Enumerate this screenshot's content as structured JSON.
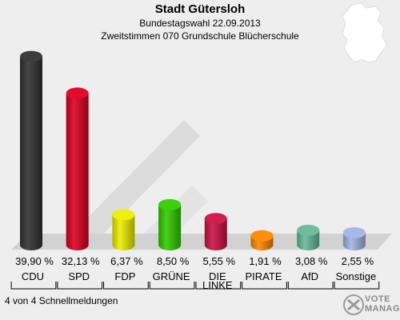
{
  "header": {
    "title": "Stadt Gütersloh",
    "subtitle": "Bundestagswahl 22.09.2013",
    "subtitle2": "Zweitstimmen 070 Grundschule Blücherschule"
  },
  "footer": {
    "text": "4 von 4 Schnellmeldungen"
  },
  "logo": {
    "text_top": "VOTE",
    "text_bottom": "MANAGER"
  },
  "chart_data": {
    "type": "bar",
    "title": "Stadt Gütersloh",
    "subtitle": "Bundestagswahl 22.09.2013 · Zweitstimmen 070 Grundschule Blücherschule",
    "categories": [
      "CDU",
      "SPD",
      "FDP",
      "GRÜNE",
      "DIE LINKE",
      "PIRATE",
      "AfD",
      "Sonstige"
    ],
    "values": [
      39.9,
      32.13,
      6.37,
      8.5,
      5.55,
      1.91,
      3.08,
      2.55
    ],
    "value_labels": [
      "39,90 %",
      "32,13 %",
      "6,37 %",
      "8,50 %",
      "5,55 %",
      "1,91 %",
      "3,08 %",
      "2,55 %"
    ],
    "colors": [
      "#333333",
      "#dd0022",
      "#eeee00",
      "#33cc00",
      "#cc1144",
      "#ff8800",
      "#66bb99",
      "#a3b5e6"
    ],
    "unit": "%",
    "ylim": [
      0,
      40
    ],
    "grid": false,
    "legend": "none"
  }
}
